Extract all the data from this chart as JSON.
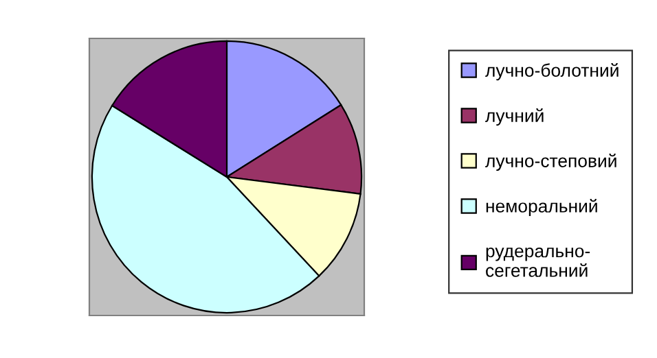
{
  "chart_data": {
    "type": "pie",
    "categories": [
      "лучно-болотний",
      "лучний",
      "лучно-степовий",
      "неморальний",
      "рудерально-сегетальний"
    ],
    "values": [
      16.1,
      10.9,
      11.0,
      45.8,
      16.2
    ],
    "colors": [
      "#9999ff",
      "#993366",
      "#ffffcc",
      "#ccffff",
      "#660066"
    ],
    "legend": "right"
  }
}
